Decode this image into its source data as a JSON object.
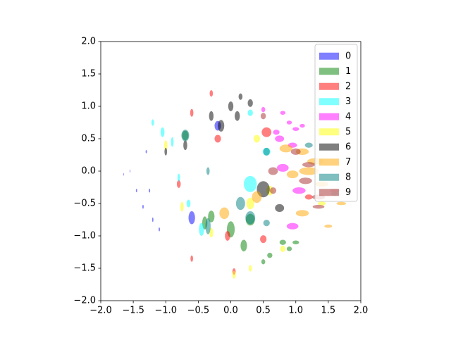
{
  "chart_data": {
    "type": "ellipse",
    "xlim": [
      -2,
      2
    ],
    "ylim": [
      -2,
      2
    ],
    "xticks": [
      {
        "value": -2,
        "label": "−2.0"
      },
      {
        "value": -1.5,
        "label": "−1.5"
      },
      {
        "value": -1,
        "label": "−1.0"
      },
      {
        "value": -0.5,
        "label": "−0.5"
      },
      {
        "value": 0,
        "label": "0.0"
      },
      0.5,
      {
        "value": 1,
        "label": "1.0"
      },
      1.5,
      {
        "value": 2,
        "label": "2.0"
      }
    ],
    "yticks": [
      {
        "value": -2,
        "label": "−2.0"
      },
      {
        "value": -1.5,
        "label": "−1.5"
      },
      {
        "value": -1,
        "label": "−1.0"
      },
      {
        "value": -0.5,
        "label": "−0.5"
      },
      {
        "value": 0,
        "label": "0.0"
      },
      0.5,
      {
        "value": 1,
        "label": "1.0"
      },
      1.5,
      {
        "value": 2,
        "label": "2.0"
      }
    ],
    "alpha": 0.5,
    "legend": "upper right",
    "series": [
      {
        "name": "0",
        "color": "blue",
        "x": [
          -1.65,
          -1.55,
          -1.45,
          -1.35,
          -1.25,
          -1.2,
          -1.1,
          -1.3,
          -0.6,
          -0.2
        ],
        "y": [
          -0.05,
          0.0,
          -0.3,
          -0.55,
          -0.3,
          -0.75,
          -0.9,
          0.3,
          -0.72,
          0.7
        ],
        "width": [
          0.01,
          0.01,
          0.02,
          0.02,
          0.02,
          0.02,
          0.02,
          0.02,
          0.1,
          0.1
        ],
        "height": [
          0.04,
          0.05,
          0.05,
          0.06,
          0.06,
          0.07,
          0.06,
          0.05,
          0.2,
          0.15
        ]
      },
      {
        "name": "1",
        "color": "green",
        "x": [
          0.0,
          -0.3,
          -0.7,
          0.8,
          0.9,
          0.6,
          1.0,
          0.5,
          0.2,
          0.3,
          -0.4
        ],
        "y": [
          -0.9,
          -0.7,
          0.55,
          -1.1,
          -1.2,
          -1.3,
          -1.1,
          -1.4,
          -1.15,
          -0.75,
          -0.8
        ],
        "width": [
          0.12,
          0.1,
          0.1,
          0.1,
          0.08,
          0.08,
          0.1,
          0.06,
          0.1,
          0.14,
          0.08
        ],
        "height": [
          0.25,
          0.18,
          0.15,
          0.08,
          0.07,
          0.08,
          0.06,
          0.08,
          0.18,
          0.18,
          0.2
        ]
      },
      {
        "name": "2",
        "color": "red",
        "x": [
          0.55,
          -0.2,
          0.5,
          -0.05,
          -0.8,
          -0.6,
          -0.3,
          1.2,
          0.05,
          -0.6
        ],
        "y": [
          0.6,
          0.5,
          -1.05,
          -1.0,
          -0.2,
          0.9,
          1.2,
          -0.4,
          -1.55,
          -1.35
        ],
        "width": [
          0.15,
          0.1,
          0.1,
          0.08,
          0.06,
          0.05,
          0.05,
          0.12,
          0.05,
          0.04
        ],
        "height": [
          0.15,
          0.12,
          0.12,
          0.15,
          0.12,
          0.12,
          0.1,
          0.08,
          0.1,
          0.1
        ]
      },
      {
        "name": "3",
        "color": "cyan",
        "x": [
          0.3,
          -1.05,
          -1.2,
          -0.9,
          -0.8,
          -0.65,
          0.55,
          0.3,
          -0.45
        ],
        "y": [
          -0.2,
          0.6,
          0.75,
          0.45,
          -0.1,
          -0.5,
          0.3,
          0.9,
          -0.9
        ],
        "width": [
          0.2,
          0.06,
          0.04,
          0.04,
          0.04,
          0.06,
          0.12,
          0.08,
          0.08
        ],
        "height": [
          0.25,
          0.15,
          0.1,
          0.15,
          0.12,
          0.12,
          0.12,
          0.1,
          0.2
        ]
      },
      {
        "name": "4",
        "color": "magenta",
        "x": [
          0.8,
          0.9,
          1.0,
          0.7,
          1.1,
          0.75,
          0.95,
          0.8,
          0.95,
          1.05,
          0.5
        ],
        "y": [
          0.9,
          0.75,
          0.65,
          0.6,
          0.7,
          0.5,
          0.4,
          0.05,
          -0.85,
          -0.3,
          0.95
        ],
        "width": [
          0.08,
          0.08,
          0.1,
          0.1,
          0.08,
          0.14,
          0.14,
          0.18,
          0.18,
          0.2,
          0.06
        ],
        "height": [
          0.06,
          0.06,
          0.06,
          0.08,
          0.06,
          0.1,
          0.08,
          0.12,
          0.1,
          0.1,
          0.08
        ]
      },
      {
        "name": "5",
        "color": "yellow",
        "x": [
          0.3,
          0.4,
          -1.0,
          -0.75,
          -0.3,
          0.3,
          0.05,
          0.8,
          1.4,
          0.6
        ],
        "y": [
          -0.5,
          0.5,
          0.4,
          -0.55,
          -0.95,
          -1.5,
          -1.6,
          -1.2,
          -0.5,
          -0.3
        ],
        "width": [
          0.12,
          0.1,
          0.05,
          0.05,
          0.06,
          0.05,
          0.05,
          0.08,
          0.12,
          0.1
        ],
        "height": [
          0.18,
          0.12,
          0.15,
          0.15,
          0.15,
          0.1,
          0.12,
          0.1,
          0.06,
          0.15
        ]
      },
      {
        "name": "6",
        "color": "black",
        "x": [
          0.5,
          0.75,
          -0.15,
          0.0,
          0.1,
          0.3,
          -0.3,
          -1.0,
          -0.7,
          0.15
        ],
        "y": [
          -0.28,
          -0.57,
          0.7,
          1.0,
          0.85,
          1.05,
          0.85,
          0.3,
          0.4,
          1.15
        ],
        "width": [
          0.2,
          0.14,
          0.1,
          0.08,
          0.08,
          0.08,
          0.07,
          0.04,
          0.06,
          0.06
        ],
        "height": [
          0.25,
          0.12,
          0.18,
          0.15,
          0.15,
          0.12,
          0.15,
          0.12,
          0.15,
          0.1
        ]
      },
      {
        "name": "7",
        "color": "orange",
        "x": [
          1.2,
          1.4,
          1.1,
          1.3,
          0.95,
          1.1,
          1.5,
          -0.1,
          0.4,
          0.85,
          1.7
        ],
        "y": [
          0.0,
          -0.2,
          0.3,
          0.15,
          -0.05,
          -0.65,
          -0.85,
          -0.65,
          -0.4,
          0.35,
          -0.5
        ],
        "width": [
          0.3,
          0.2,
          0.2,
          0.25,
          0.18,
          0.2,
          0.12,
          0.15,
          0.15,
          0.2,
          0.15
        ],
        "height": [
          0.12,
          0.08,
          0.1,
          0.1,
          0.12,
          0.1,
          0.05,
          0.18,
          0.18,
          0.12,
          0.05
        ]
      },
      {
        "name": "8",
        "color": "teal",
        "x": [
          0.15,
          0.3,
          -0.7,
          -0.35,
          0.55,
          0.55,
          1.2,
          -0.35,
          1.6
        ],
        "y": [
          -0.5,
          -0.72,
          0.55,
          0.0,
          -0.8,
          0.3,
          0.4,
          -0.85,
          -0.35
        ],
        "width": [
          0.14,
          0.15,
          0.12,
          0.05,
          0.1,
          0.1,
          0.12,
          0.08,
          0.12
        ],
        "height": [
          0.2,
          0.2,
          0.18,
          0.12,
          0.1,
          0.12,
          0.08,
          0.25,
          0.06
        ]
      },
      {
        "name": "9",
        "color": "brown",
        "x": [
          0.65,
          1.0,
          1.15,
          1.35,
          1.35,
          1.6,
          0.65,
          1.2,
          0.5
        ],
        "y": [
          0.0,
          0.3,
          -0.15,
          -0.4,
          -0.55,
          -0.3,
          -0.3,
          0.1,
          0.85
        ],
        "width": [
          0.15,
          0.15,
          0.2,
          0.2,
          0.18,
          0.15,
          0.1,
          0.2,
          0.08
        ],
        "height": [
          0.12,
          0.1,
          0.1,
          0.08,
          0.06,
          0.06,
          0.1,
          0.08,
          0.1
        ]
      }
    ]
  }
}
